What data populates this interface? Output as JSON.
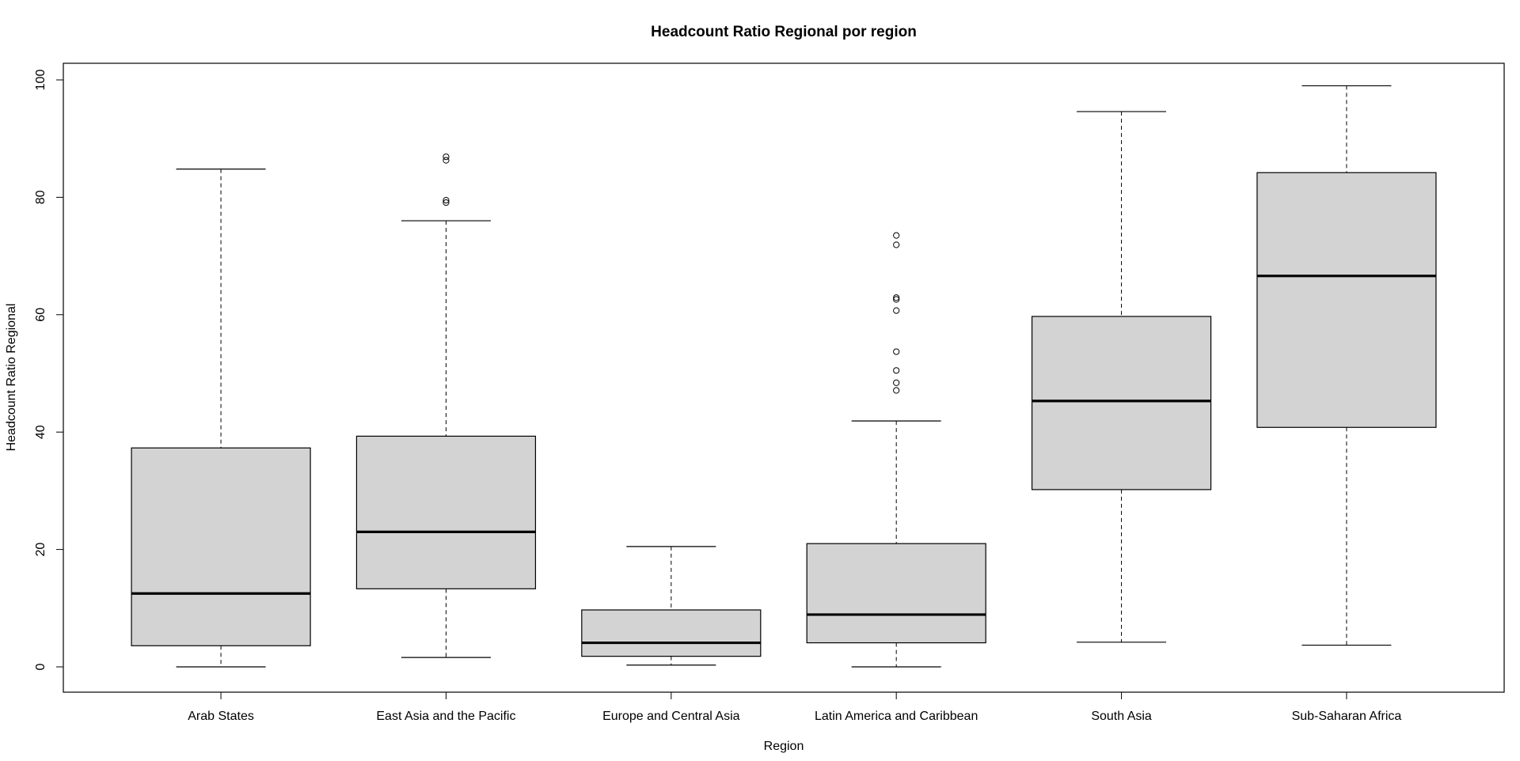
{
  "chart_data": {
    "type": "boxplot",
    "title": "Headcount Ratio Regional por region",
    "xlabel": "Region",
    "ylabel": "Headcount Ratio Regional",
    "ylim": [
      -4,
      103
    ],
    "yticks": [
      "0",
      "20",
      "40",
      "60",
      "80",
      "100"
    ],
    "grid": false,
    "legend": "none",
    "box_fill": "#d3d3d3",
    "categories": [
      "Arab States",
      "East Asia and the Pacific",
      "Europe and Central Asia",
      "Latin America and Caribbean",
      "South Asia",
      "Sub-Saharan Africa"
    ],
    "boxes": [
      {
        "whisker_low": 0.0,
        "q1": 3.6,
        "median": 12.5,
        "q3": 37.3,
        "whisker_high": 84.8,
        "outliers": []
      },
      {
        "whisker_low": 1.6,
        "q1": 13.3,
        "median": 23.0,
        "q3": 39.3,
        "whisker_high": 76.0,
        "outliers": [
          79.1,
          79.5,
          86.3,
          86.9
        ]
      },
      {
        "whisker_low": 0.3,
        "q1": 1.8,
        "median": 4.1,
        "q3": 9.7,
        "whisker_high": 20.5,
        "outliers": []
      },
      {
        "whisker_low": 0.0,
        "q1": 4.1,
        "median": 8.9,
        "q3": 21.0,
        "whisker_high": 41.9,
        "outliers": [
          47.1,
          48.4,
          50.5,
          53.7,
          60.7,
          62.6,
          62.9,
          71.9,
          73.5
        ]
      },
      {
        "whisker_low": 4.2,
        "q1": 30.2,
        "median": 45.3,
        "q3": 59.7,
        "whisker_high": 94.6,
        "outliers": []
      },
      {
        "whisker_low": 3.7,
        "q1": 40.8,
        "median": 66.6,
        "q3": 84.2,
        "whisker_high": 99.0,
        "outliers": []
      }
    ]
  }
}
